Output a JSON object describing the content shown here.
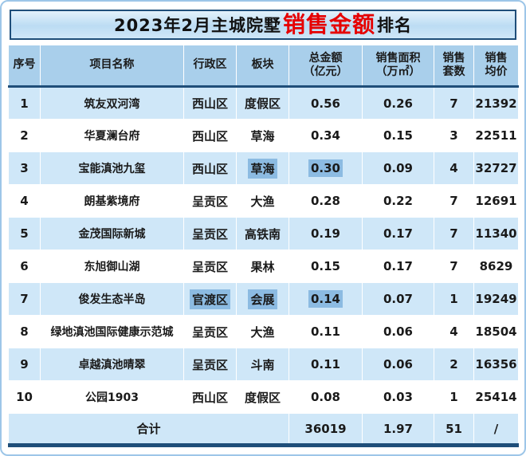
{
  "title": {
    "prefix": "2023年2月主城院墅",
    "highlight": "销售金额",
    "suffix": "排名",
    "full": "2023年2月主城院墅销售金额排名"
  },
  "chart_data": {
    "type": "table",
    "title": "2023年2月主城院墅销售金额排名",
    "columns": [
      "序号",
      "项目名称",
      "行政区",
      "板块",
      "总金额\n（亿元）",
      "销售面积\n（万㎡）",
      "销售\n套数",
      "销售\n均价"
    ],
    "rows": [
      [
        "1",
        "筑友双河湾",
        "西山区",
        "度假区",
        "0.56",
        "0.26",
        "7",
        "21392"
      ],
      [
        "2",
        "华夏澜台府",
        "西山区",
        "草海",
        "0.34",
        "0.15",
        "3",
        "22511"
      ],
      [
        "3",
        "宝能滇池九玺",
        "西山区",
        "草海",
        "0.30",
        "0.09",
        "4",
        "32727"
      ],
      [
        "4",
        "朗基紫境府",
        "呈贡区",
        "大渔",
        "0.28",
        "0.22",
        "7",
        "12691"
      ],
      [
        "5",
        "金茂国际新城",
        "呈贡区",
        "高铁南",
        "0.19",
        "0.17",
        "7",
        "11340"
      ],
      [
        "6",
        "东旭御山湖",
        "呈贡区",
        "果林",
        "0.15",
        "0.17",
        "7",
        "8629"
      ],
      [
        "7",
        "俊发生态半岛",
        "官渡区",
        "会展",
        "0.14",
        "0.07",
        "1",
        "19249"
      ],
      [
        "8",
        "绿地滇池国际健康示范城",
        "呈贡区",
        "大渔",
        "0.11",
        "0.06",
        "4",
        "18504"
      ],
      [
        "9",
        "卓越滇池晴翠",
        "呈贡区",
        "斗南",
        "0.11",
        "0.06",
        "2",
        "16356"
      ],
      [
        "10",
        "公园1903",
        "西山区",
        "度假区",
        "0.08",
        "0.03",
        "1",
        "25414"
      ]
    ],
    "total_row": {
      "label": "合计",
      "total_amount": "36019",
      "total_area": "1.97",
      "total_units": "51",
      "avg_price": "/"
    },
    "selected_cells": [
      [
        2,
        3
      ],
      [
        2,
        4
      ],
      [
        6,
        2
      ],
      [
        6,
        3
      ],
      [
        6,
        4
      ]
    ]
  },
  "colors": {
    "accent_red": "#e60000",
    "dark_navy": "#1f4e79",
    "header_bg": "#a9cfeb",
    "stripe_bg": "#cfe7f8",
    "white_row_bg": "#ffffff",
    "selection_bg": "#8cbbe2",
    "frame_blue": "#9dc6e8"
  }
}
